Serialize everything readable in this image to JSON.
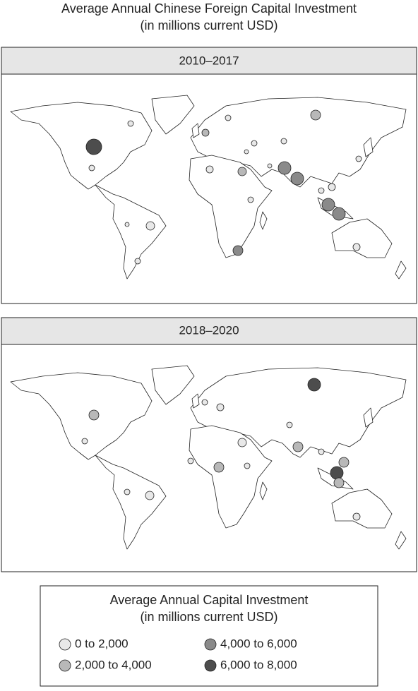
{
  "title": "Average Annual Chinese Foreign Capital Investment",
  "subtitle": "(in millions current USD)",
  "panels": [
    {
      "title": "2010–2017"
    },
    {
      "title": "2018–2020"
    }
  ],
  "legend": {
    "title": "Average Annual Capital Investment",
    "subtitle": "(in millions current USD)",
    "items": [
      {
        "label": "0 to 2,000",
        "color": "#e8e8e8"
      },
      {
        "label": "2,000 to 4,000",
        "color": "#b8b8b8"
      },
      {
        "label": "4,000 to 6,000",
        "color": "#8a8a8a"
      },
      {
        "label": "6,000 to 8,000",
        "color": "#4d4d4d"
      }
    ]
  }
}
